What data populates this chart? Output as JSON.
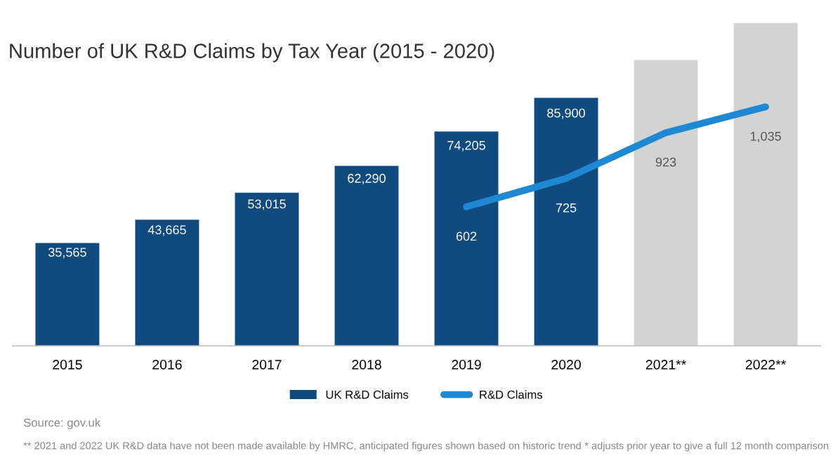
{
  "chart_data": {
    "type": "bar",
    "title": "Number of UK R&D Claims by Tax Year (2015 - 2020)",
    "categories": [
      "2015",
      "2016",
      "2017",
      "2018",
      "2019",
      "2020",
      "2021**",
      "2022**"
    ],
    "series": [
      {
        "name": "UK R&D Claims",
        "color": "#104a7f",
        "colors": [
          "#104a7f",
          "#104a7f",
          "#104a7f",
          "#104a7f",
          "#104a7f",
          "#104a7f",
          "#d3d3d3",
          "#d3d3d3"
        ],
        "values": [
          35565,
          43665,
          53015,
          62290,
          74205,
          85900,
          99000,
          111800
        ],
        "value_labels": [
          "35,565",
          "43,665",
          "53,015",
          "62,290",
          "74,205",
          "85,900",
          null,
          null
        ]
      },
      {
        "name": "R&D Claims",
        "type": "line",
        "axis": "y2",
        "color": "#1e88d2",
        "values": [
          null,
          null,
          null,
          null,
          602,
          725,
          923,
          1035
        ],
        "value_labels": [
          null,
          null,
          null,
          null,
          "602",
          "725",
          "923",
          "1,035"
        ]
      }
    ],
    "tick_labels": "x",
    "grid": false,
    "legend": "bottom",
    "annotations": [
      "Source: gov.uk",
      "** 2021 and 2022 UK R&D data have not been made available by HMRC, anticipated figures shown based on historic trend",
      "* adjusts prior year to give a full 12 month comparison"
    ]
  }
}
